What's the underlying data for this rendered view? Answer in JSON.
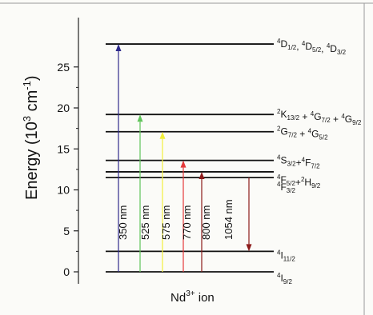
{
  "chart_data": {
    "type": "energy-level-diagram",
    "y_axis": {
      "label_main": "Energy (10",
      "label_exp": "3",
      "label_unit": " cm",
      "label_unit_exp": "-1",
      "label_close": ")",
      "range": [
        0,
        28
      ],
      "ticks": [
        0,
        5,
        10,
        15,
        20,
        25
      ]
    },
    "x_axis": {
      "label_prefix": "Nd",
      "label_sup": "3+",
      "label_suffix": " ion"
    },
    "levels": [
      {
        "energy": 0.0,
        "parts": [
          [
            "4",
            "I",
            "9/2"
          ]
        ],
        "label_tail": ""
      },
      {
        "energy": 2.5,
        "parts": [
          [
            "4",
            "I",
            "11/2"
          ]
        ],
        "label_tail": ""
      },
      {
        "energy": 11.5,
        "parts": [
          [
            "4",
            "F",
            "3/2"
          ]
        ],
        "label_tail": ""
      },
      {
        "energy": 12.2,
        "parts": [
          [
            "4",
            "F",
            "5/2"
          ],
          [
            "2",
            "H",
            "9/2"
          ]
        ],
        "sep": "+",
        "label_tail": ""
      },
      {
        "energy": 13.6,
        "parts": [
          [
            "4",
            "S",
            "3/2"
          ],
          [
            "4",
            "F",
            "7/2"
          ]
        ],
        "sep": "+",
        "label_tail": ""
      },
      {
        "energy": 17.1,
        "parts": [
          [
            "2",
            "G",
            "7/2"
          ],
          [
            "4",
            "G",
            "5/2"
          ]
        ],
        "sep": " + ",
        "label_tail": ""
      },
      {
        "energy": 19.2,
        "parts": [
          [
            "2",
            "K",
            "13/2"
          ],
          [
            "4",
            "G",
            "7/2"
          ],
          [
            "4",
            "G",
            "9/2"
          ]
        ],
        "sep": " + ",
        "label_tail": ""
      },
      {
        "energy": 27.8,
        "parts": [
          [
            "4",
            "D",
            "1/2"
          ],
          [
            "4",
            "D",
            "5/2"
          ],
          [
            "4",
            "D",
            "3/2"
          ]
        ],
        "sep": ", ",
        "label_tail": ""
      }
    ],
    "transitions": [
      {
        "label": "350 nm",
        "from": 0.0,
        "to": 27.8,
        "color": "#2e2a8c",
        "direction": "up"
      },
      {
        "label": "525 nm",
        "from": 0.0,
        "to": 19.2,
        "color": "#5fc35a",
        "direction": "up"
      },
      {
        "label": "575 nm",
        "from": 0.0,
        "to": 17.1,
        "color": "#f2ef3a",
        "direction": "up"
      },
      {
        "label": "770 nm",
        "from": 0.0,
        "to": 13.6,
        "color": "#e63a3a",
        "direction": "up"
      },
      {
        "label": "800 nm",
        "from": 0.0,
        "to": 12.2,
        "color": "#8c1a1a",
        "direction": "up"
      },
      {
        "label": "1054 nm",
        "from": 11.5,
        "to": 2.5,
        "color": "#8c1a1a",
        "direction": "down"
      }
    ]
  }
}
